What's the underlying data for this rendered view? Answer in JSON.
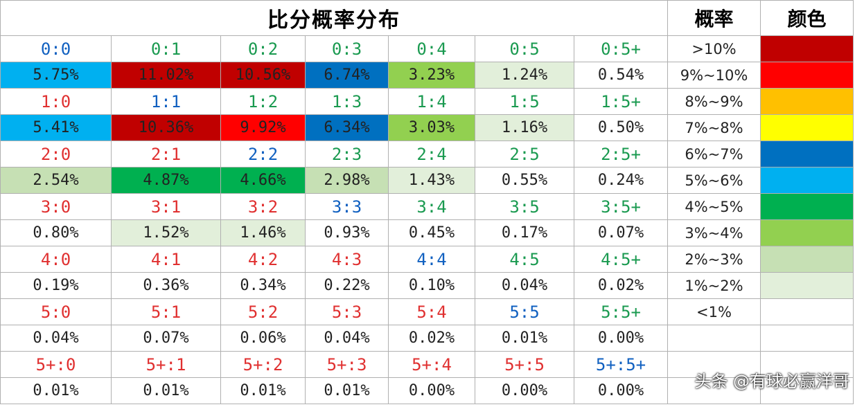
{
  "header": {
    "title": "比分概率分布",
    "prob_head": "概率",
    "color_head": "颜色"
  },
  "table": {
    "groups": [
      {
        "scores": [
          "0:0",
          "0:1",
          "0:2",
          "0:3",
          "0:4",
          "0:5",
          "0:5+"
        ],
        "score_colors": [
          "#1060c0",
          "#1a9a50",
          "#1a9a50",
          "#1a9a50",
          "#1a9a50",
          "#1a9a50",
          "#1a9a50"
        ],
        "probs": [
          "5.75%",
          "11.02%",
          "10.56%",
          "6.74%",
          "3.23%",
          "1.24%",
          "0.54%"
        ],
        "fills": [
          "#00b0f0",
          "#c00000",
          "#c00000",
          "#0070c0",
          "#92d050",
          "#e2efda",
          "#ffffff"
        ]
      },
      {
        "scores": [
          "1:0",
          "1:1",
          "1:2",
          "1:3",
          "1:4",
          "1:5",
          "1:5+"
        ],
        "score_colors": [
          "#e03030",
          "#1060c0",
          "#1a9a50",
          "#1a9a50",
          "#1a9a50",
          "#1a9a50",
          "#1a9a50"
        ],
        "probs": [
          "5.41%",
          "10.36%",
          "9.92%",
          "6.34%",
          "3.03%",
          "1.16%",
          "0.50%"
        ],
        "fills": [
          "#00b0f0",
          "#c00000",
          "#ff0000",
          "#0070c0",
          "#92d050",
          "#e2efda",
          "#ffffff"
        ]
      },
      {
        "scores": [
          "2:0",
          "2:1",
          "2:2",
          "2:3",
          "2:4",
          "2:5",
          "2:5+"
        ],
        "score_colors": [
          "#e03030",
          "#e03030",
          "#1060c0",
          "#1a9a50",
          "#1a9a50",
          "#1a9a50",
          "#1a9a50"
        ],
        "probs": [
          "2.54%",
          "4.87%",
          "4.66%",
          "2.98%",
          "1.43%",
          "0.55%",
          "0.24%"
        ],
        "fills": [
          "#c6e0b4",
          "#00b050",
          "#00b050",
          "#c6e0b4",
          "#e2efda",
          "#ffffff",
          "#ffffff"
        ]
      },
      {
        "scores": [
          "3:0",
          "3:1",
          "3:2",
          "3:3",
          "3:4",
          "3:5",
          "3:5+"
        ],
        "score_colors": [
          "#e03030",
          "#e03030",
          "#e03030",
          "#1060c0",
          "#1a9a50",
          "#1a9a50",
          "#1a9a50"
        ],
        "probs": [
          "0.80%",
          "1.52%",
          "1.46%",
          "0.93%",
          "0.45%",
          "0.17%",
          "0.07%"
        ],
        "fills": [
          "#ffffff",
          "#e2efda",
          "#e2efda",
          "#ffffff",
          "#ffffff",
          "#ffffff",
          "#ffffff"
        ]
      },
      {
        "scores": [
          "4:0",
          "4:1",
          "4:2",
          "4:3",
          "4:4",
          "4:5",
          "4:5+"
        ],
        "score_colors": [
          "#e03030",
          "#e03030",
          "#e03030",
          "#e03030",
          "#1060c0",
          "#1a9a50",
          "#1a9a50"
        ],
        "probs": [
          "0.19%",
          "0.36%",
          "0.34%",
          "0.22%",
          "0.10%",
          "0.04%",
          "0.02%"
        ],
        "fills": [
          "#ffffff",
          "#ffffff",
          "#ffffff",
          "#ffffff",
          "#ffffff",
          "#ffffff",
          "#ffffff"
        ]
      },
      {
        "scores": [
          "5:0",
          "5:1",
          "5:2",
          "5:3",
          "5:4",
          "5:5",
          "5:5+"
        ],
        "score_colors": [
          "#e03030",
          "#e03030",
          "#e03030",
          "#e03030",
          "#e03030",
          "#1060c0",
          "#1a9a50"
        ],
        "probs": [
          "0.04%",
          "0.07%",
          "0.06%",
          "0.04%",
          "0.02%",
          "0.01%",
          "0.00%"
        ],
        "fills": [
          "#ffffff",
          "#ffffff",
          "#ffffff",
          "#ffffff",
          "#ffffff",
          "#ffffff",
          "#ffffff"
        ]
      },
      {
        "scores": [
          "5+:0",
          "5+:1",
          "5+:2",
          "5+:3",
          "5+:4",
          "5+:5",
          "5+:5+"
        ],
        "score_colors": [
          "#e03030",
          "#e03030",
          "#e03030",
          "#e03030",
          "#e03030",
          "#e03030",
          "#1060c0"
        ],
        "probs": [
          "0.01%",
          "0.01%",
          "0.01%",
          "0.01%",
          "0.00%",
          "0.00%",
          "0.00%"
        ],
        "fills": [
          "#ffffff",
          "#ffffff",
          "#ffffff",
          "#ffffff",
          "#ffffff",
          "#ffffff",
          "#ffffff"
        ]
      }
    ]
  },
  "legend": {
    "ranges": [
      ">10%",
      "9%~10%",
      "8%~9%",
      "7%~8%",
      "6%~7%",
      "5%~6%",
      "4%~5%",
      "3%~4%",
      "2%~3%",
      "1%~2%",
      "<1%"
    ],
    "colors": [
      "#c00000",
      "#ff0000",
      "#ffc000",
      "#ffff00",
      "#0070c0",
      "#00b0f0",
      "#00b050",
      "#92d050",
      "#c6e0b4",
      "#e2efda",
      "#ffffff"
    ]
  },
  "watermark": "头条 @有球必赢洋哥"
}
